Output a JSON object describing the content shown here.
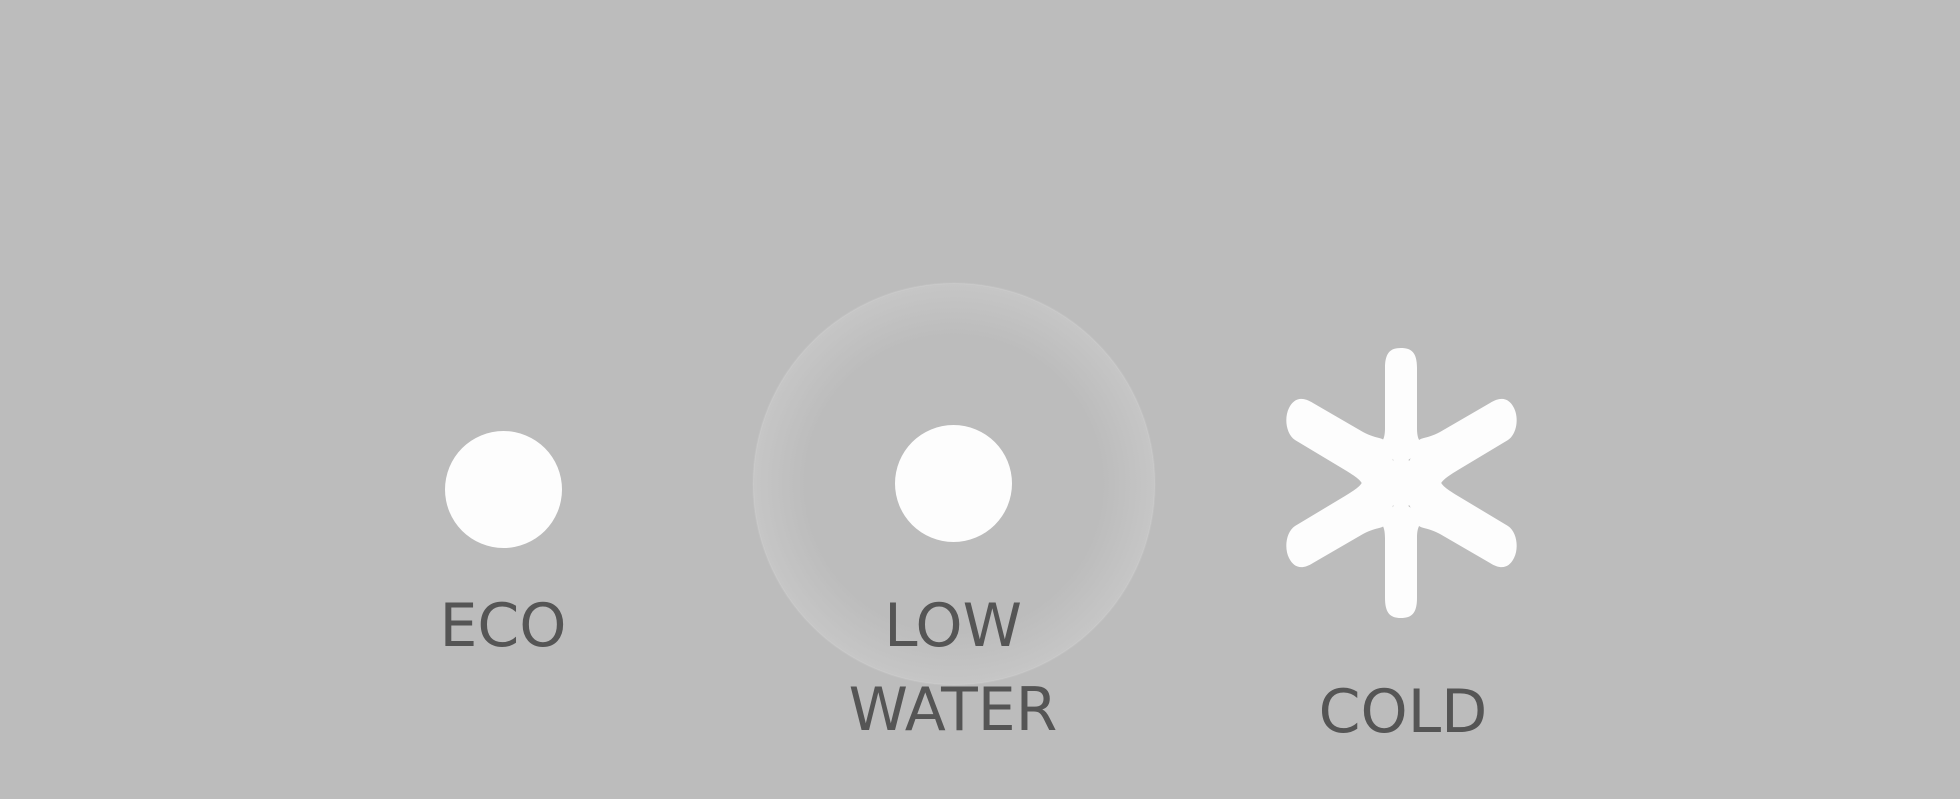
{
  "panel": {
    "background": "#bcbcbc",
    "text_color": "#555555",
    "light_color": "#fdfdfd"
  },
  "indicators": {
    "eco": {
      "label": "ECO",
      "icon": "dot-icon",
      "highlighted": false
    },
    "low_water": {
      "label": "LOW\nWATER",
      "icon": "dot-icon",
      "highlighted": true
    },
    "cold": {
      "label": "COLD",
      "icon": "snowflake-asterisk-icon",
      "highlighted": false
    }
  }
}
